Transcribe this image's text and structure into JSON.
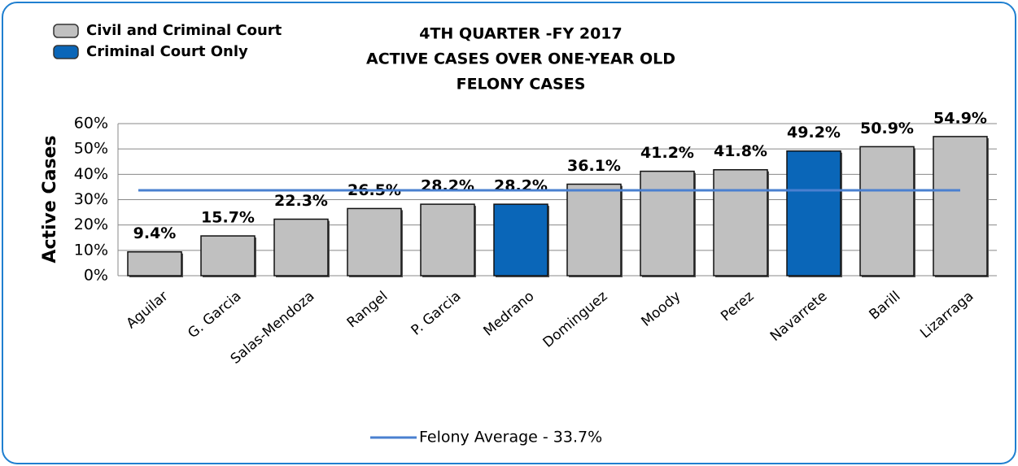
{
  "chart_data": {
    "type": "bar",
    "title": [
      "4TH QUARTER -FY 2017",
      "ACTIVE CASES OVER ONE-YEAR OLD",
      "FELONY CASES"
    ],
    "y_label": "Active Cases",
    "categories": [
      "Aguilar",
      "G. Garcia",
      "Salas-Mendoza",
      "Rangel",
      "P. Garcia",
      "Medrano",
      "Dominguez",
      "Moody",
      "Perez",
      "Navarrete",
      "Barill",
      "Lizarraga"
    ],
    "values": [
      9.4,
      15.7,
      22.3,
      26.5,
      28.2,
      28.2,
      36.1,
      41.2,
      41.8,
      49.2,
      50.9,
      54.9
    ],
    "value_labels": [
      "9.4%",
      "15.7%",
      "22.3%",
      "26.5%",
      "28.2%",
      "28.2%",
      "36.1%",
      "41.2%",
      "41.8%",
      "49.2%",
      "50.9%",
      "54.9%"
    ],
    "colors": [
      "#c0c0c0",
      "#c0c0c0",
      "#c0c0c0",
      "#c0c0c0",
      "#c0c0c0",
      "#0a66b8",
      "#c0c0c0",
      "#c0c0c0",
      "#c0c0c0",
      "#0a66b8",
      "#c0c0c0",
      "#c0c0c0"
    ],
    "legend": [
      {
        "name": "Civil and Criminal Court",
        "color": "#c0c0c0"
      },
      {
        "name": "Criminal Court Only",
        "color": "#0a66b8"
      }
    ],
    "average": {
      "label": "Felony Average - 33.7%",
      "value": 33.7,
      "color": "#4a80d0"
    },
    "ylim": [
      0,
      60
    ],
    "yticks": [
      {
        "value": 0,
        "label": "0%"
      },
      {
        "value": 10,
        "label": "10%"
      },
      {
        "value": 20,
        "label": "20%"
      },
      {
        "value": 30,
        "label": "30%"
      },
      {
        "value": 40,
        "label": "40%"
      },
      {
        "value": 50,
        "label": "50%"
      },
      {
        "value": 60,
        "label": "60%"
      }
    ],
    "grid": true
  }
}
